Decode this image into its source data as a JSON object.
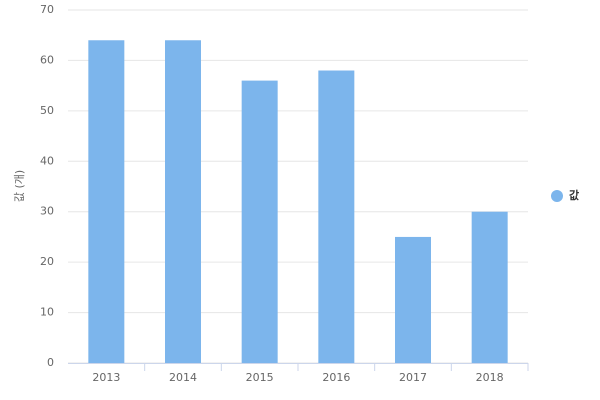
{
  "chart_data": {
    "type": "bar",
    "y_label": "값 (개)",
    "categories": [
      "2013",
      "2014",
      "2015",
      "2016",
      "2017",
      "2018"
    ],
    "series": [
      {
        "name": "값",
        "color": "#7cb5ec",
        "values": [
          64,
          64,
          56,
          58,
          25,
          30
        ]
      }
    ],
    "ylim": [
      0,
      70
    ],
    "yticks": [
      0,
      10,
      20,
      30,
      40,
      50,
      60,
      70
    ],
    "grid": true,
    "legend": "right"
  }
}
